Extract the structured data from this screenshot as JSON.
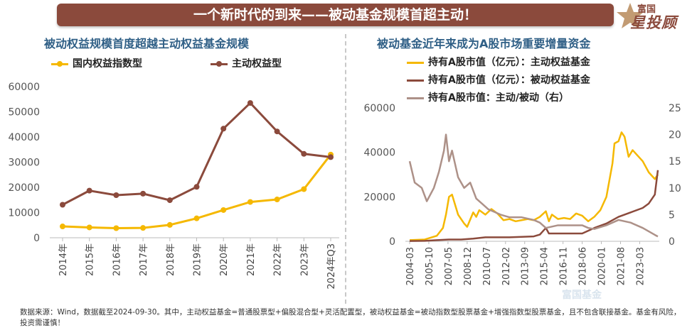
{
  "banner": "一个新时代的到来——被动基金规模首超主动！",
  "logo": {
    "line1": "富国",
    "line2": "星投顾"
  },
  "watermark": "富国基金",
  "colors": {
    "yellow": "#f5b800",
    "brown": "#8b4a3c",
    "gray": "#ad9188",
    "title": "#2f5f86"
  },
  "footnote": "数据来源：Wind，数据截至2024-09-30。其中，主动权益基金=普通股票型+偏股混合型+灵活配置型，被动权益基金=被动指数型股票基金+增强指数型股票基金，且不包含联接基金。基金有风险，投资需谨慎！",
  "chart_data": [
    {
      "type": "line",
      "title": "被动权益规模首度超越主动权益基金规模",
      "categories": [
        "2014年",
        "2015年",
        "2016年",
        "2017年",
        "2018年",
        "2019年",
        "2020年",
        "2021年",
        "2022年",
        "2023年",
        "2024年Q3"
      ],
      "series": [
        {
          "name": "国内权益指数型",
          "color": "#f5b800",
          "values": [
            4500,
            4100,
            3800,
            3900,
            5100,
            7700,
            11000,
            14200,
            15200,
            19300,
            33000
          ]
        },
        {
          "name": "主动权益型",
          "color": "#8b4a3c",
          "values": [
            13100,
            18700,
            16900,
            17500,
            14900,
            20200,
            43300,
            53500,
            42200,
            33300,
            32000
          ]
        }
      ],
      "yticks": [
        "60000",
        "50000",
        "40000",
        "30000",
        "20000",
        "10000",
        "0"
      ],
      "ylim": [
        0,
        60000
      ],
      "grid": false,
      "legend": "top"
    },
    {
      "type": "line",
      "title": "被动基金近年来成为A股市场重要增量资金",
      "x_tick_labels": [
        "2004-03",
        "2005-10",
        "2007-05",
        "2008-12",
        "2010-07",
        "2012-02",
        "2013-09",
        "2015-04",
        "2016-11",
        "2018-06",
        "2020-01",
        "2021-08",
        "2023-03"
      ],
      "x_range": [
        "2004-03",
        "2024-09"
      ],
      "series": [
        {
          "name": "持有A股市值（亿元）：主动权益基金",
          "color": "#f5b800",
          "axis": "left",
          "points": [
            [
              "2004-03",
              500
            ],
            [
              "2005-06",
              800
            ],
            [
              "2006-06",
              2500
            ],
            [
              "2006-12",
              6000
            ],
            [
              "2007-03",
              12000
            ],
            [
              "2007-06",
              20000
            ],
            [
              "2007-09",
              21000
            ],
            [
              "2008-03",
              12000
            ],
            [
              "2008-09",
              8000
            ],
            [
              "2008-12",
              6500
            ],
            [
              "2009-06",
              13000
            ],
            [
              "2009-09",
              11000
            ],
            [
              "2009-12",
              14000
            ],
            [
              "2010-06",
              12000
            ],
            [
              "2010-12",
              14500
            ],
            [
              "2011-06",
              12500
            ],
            [
              "2011-12",
              9500
            ],
            [
              "2012-06",
              10000
            ],
            [
              "2012-12",
              9000
            ],
            [
              "2013-06",
              9500
            ],
            [
              "2013-12",
              10000
            ],
            [
              "2014-06",
              9500
            ],
            [
              "2014-12",
              11000
            ],
            [
              "2015-06",
              13500
            ],
            [
              "2015-09",
              9000
            ],
            [
              "2015-12",
              12000
            ],
            [
              "2016-06",
              10000
            ],
            [
              "2016-12",
              10500
            ],
            [
              "2017-06",
              10000
            ],
            [
              "2017-12",
              12500
            ],
            [
              "2018-06",
              11500
            ],
            [
              "2018-12",
              9000
            ],
            [
              "2019-06",
              11000
            ],
            [
              "2019-12",
              14000
            ],
            [
              "2020-06",
              20000
            ],
            [
              "2020-12",
              35000
            ],
            [
              "2021-02",
              44000
            ],
            [
              "2021-06",
              45000
            ],
            [
              "2021-09",
              49000
            ],
            [
              "2021-12",
              47000
            ],
            [
              "2022-04",
              38000
            ],
            [
              "2022-08",
              41000
            ],
            [
              "2022-12",
              39000
            ],
            [
              "2023-06",
              36000
            ],
            [
              "2023-12",
              31000
            ],
            [
              "2024-06",
              28000
            ],
            [
              "2024-09",
              30000
            ]
          ]
        },
        {
          "name": "持有A股市值（亿元）：被动权益基金",
          "color": "#8b4a3c",
          "axis": "left",
          "points": [
            [
              "2004-03",
              100
            ],
            [
              "2005-06",
              200
            ],
            [
              "2006-06",
              500
            ],
            [
              "2007-06",
              800
            ],
            [
              "2008-06",
              800
            ],
            [
              "2009-06",
              1200
            ],
            [
              "2010-06",
              1800
            ],
            [
              "2011-06",
              1800
            ],
            [
              "2012-06",
              1800
            ],
            [
              "2013-06",
              2000
            ],
            [
              "2014-06",
              2200
            ],
            [
              "2014-12",
              3000
            ],
            [
              "2015-06",
              6000
            ],
            [
              "2015-09",
              3500
            ],
            [
              "2016-06",
              3500
            ],
            [
              "2017-06",
              3500
            ],
            [
              "2018-06",
              3500
            ],
            [
              "2019-06",
              6000
            ],
            [
              "2020-06",
              8000
            ],
            [
              "2021-06",
              11000
            ],
            [
              "2022-06",
              13000
            ],
            [
              "2023-06",
              15000
            ],
            [
              "2023-12",
              17000
            ],
            [
              "2024-06",
              21000
            ],
            [
              "2024-09",
              32000
            ]
          ]
        },
        {
          "name": "持有A股市值：主动/被动（右）",
          "color": "#ad9188",
          "axis": "right",
          "points": [
            [
              "2004-03",
              15
            ],
            [
              "2004-08",
              11
            ],
            [
              "2005-03",
              10
            ],
            [
              "2005-08",
              7.5
            ],
            [
              "2006-03",
              10
            ],
            [
              "2006-08",
              13
            ],
            [
              "2007-01",
              17
            ],
            [
              "2007-03",
              20
            ],
            [
              "2007-06",
              15
            ],
            [
              "2007-09",
              17
            ],
            [
              "2008-03",
              12
            ],
            [
              "2008-09",
              10
            ],
            [
              "2009-03",
              11
            ],
            [
              "2009-09",
              8
            ],
            [
              "2010-03",
              7
            ],
            [
              "2010-09",
              6
            ],
            [
              "2011-03",
              5.5
            ],
            [
              "2011-09",
              5
            ],
            [
              "2012-06",
              4.5
            ],
            [
              "2013-06",
              4.5
            ],
            [
              "2014-06",
              4
            ],
            [
              "2014-12",
              3.5
            ],
            [
              "2015-06",
              2.5
            ],
            [
              "2016-06",
              3
            ],
            [
              "2017-06",
              3
            ],
            [
              "2018-06",
              3
            ],
            [
              "2018-12",
              2.5
            ],
            [
              "2019-06",
              2.3
            ],
            [
              "2020-06",
              3
            ],
            [
              "2021-06",
              4
            ],
            [
              "2022-06",
              3.5
            ],
            [
              "2023-06",
              2.5
            ],
            [
              "2024-06",
              1.2
            ],
            [
              "2024-09",
              0.9
            ]
          ]
        }
      ],
      "y_left": {
        "ticks": [
          "60000",
          "40000",
          "20000",
          "0"
        ],
        "range": [
          0,
          60000
        ]
      },
      "y_right": {
        "ticks": [
          "25",
          "20",
          "15",
          "10",
          "5",
          "0"
        ],
        "range": [
          0,
          25
        ]
      },
      "grid": false,
      "legend": "top-left"
    }
  ]
}
